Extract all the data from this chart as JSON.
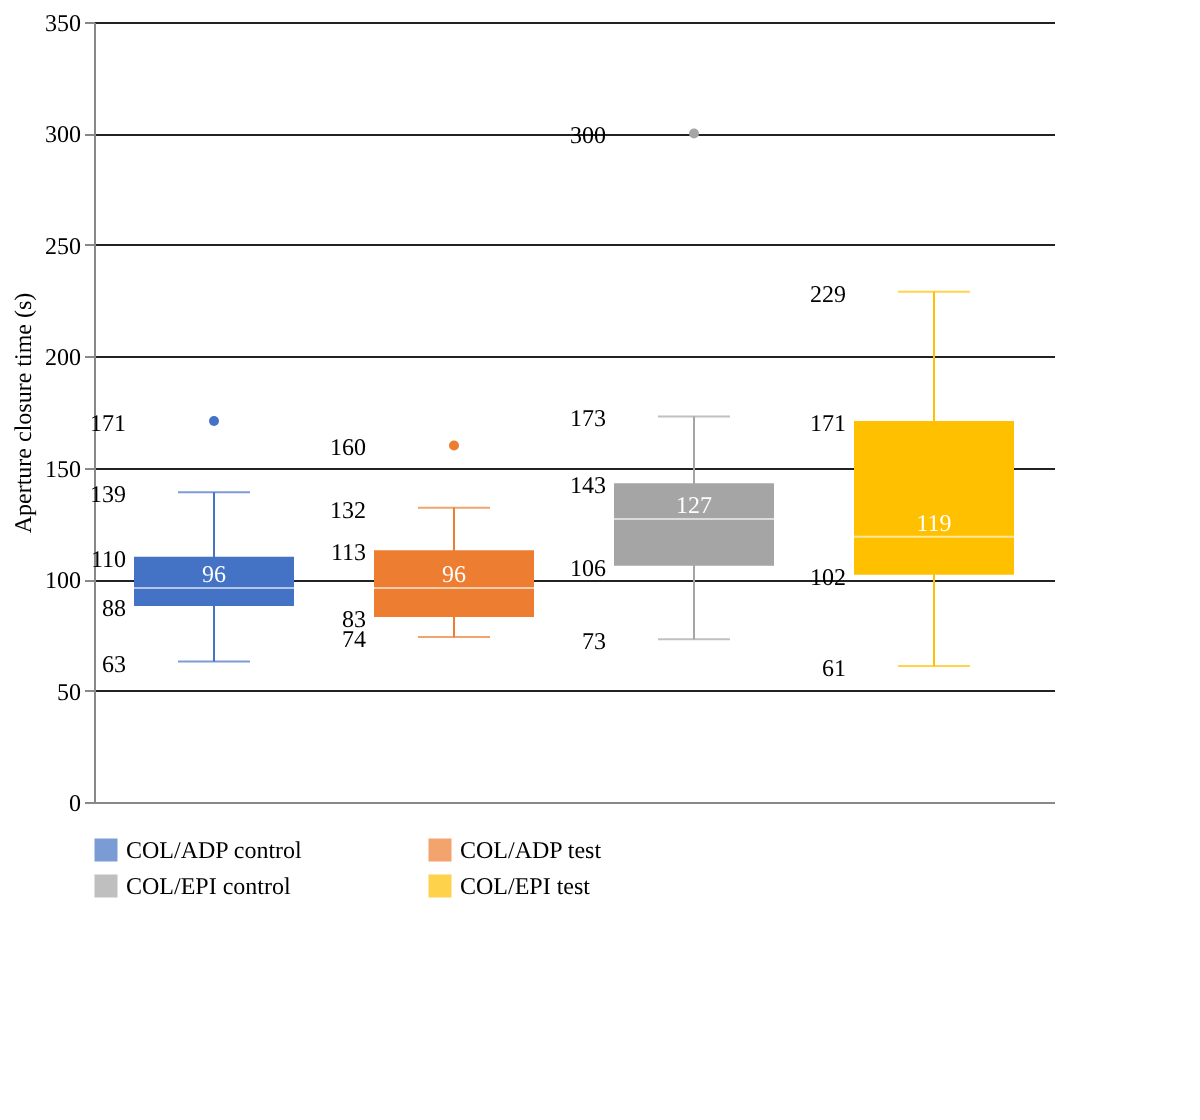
{
  "chart_data": {
    "type": "box",
    "ylabel": "Aperture closure time (s)",
    "categories": [
      null,
      null,
      null,
      null
    ],
    "ylim": [
      0,
      350
    ],
    "yticks": [
      0,
      50,
      100,
      150,
      200,
      250,
      300,
      350
    ],
    "grid": "y",
    "legend": "bottom",
    "tick_labels": "y",
    "series": [
      {
        "name": "COL/ADP control",
        "color": "#4472c4",
        "boxes": [
          {
            "low": 63,
            "q1": 88,
            "median": 96,
            "q3": 110,
            "high": 139,
            "outliers": [
              171
            ]
          },
          null,
          null,
          null
        ]
      },
      {
        "name": "COL/ADP test",
        "color": "#ed7d31",
        "boxes": [
          null,
          {
            "low": 74,
            "q1": 83,
            "median": 96,
            "q3": 113,
            "high": 132,
            "outliers": [
              160
            ]
          },
          null,
          null
        ]
      },
      {
        "name": "COL/EPI control",
        "color": "#a5a5a5",
        "boxes": [
          null,
          null,
          {
            "low": 73,
            "q1": 106,
            "median": 127,
            "q3": 143,
            "high": 173,
            "outliers": [
              300
            ]
          },
          null
        ]
      },
      {
        "name": "COL/EPI test",
        "color": "#ffc000",
        "boxes": [
          null,
          null,
          null,
          {
            "low": 61,
            "q1": 102,
            "median": 119,
            "q3": 171,
            "high": 229
          }
        ]
      }
    ],
    "annotations": [
      "63",
      "88",
      {
        "text": "96",
        "y": 96
      },
      "110",
      "139",
      "171",
      "74",
      "83",
      {
        "text": "96",
        "y": 96
      },
      "113",
      "132",
      "160",
      "73",
      "106",
      {
        "text": "127",
        "y": 127
      },
      "143",
      "173",
      "300",
      "61",
      "102",
      {
        "text": "119",
        "y": 119
      },
      "171",
      "229"
    ]
  }
}
